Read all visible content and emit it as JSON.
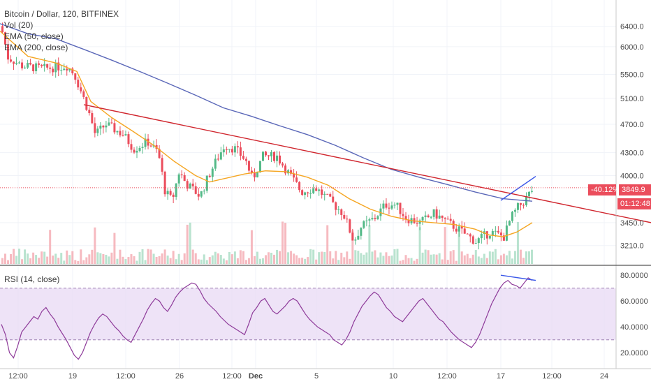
{
  "header": {
    "symbol": "Bitcoin / Dollar, 120, BITFINEX",
    "indicators": [
      "Vol (20)",
      "EMA (50, close)",
      "EMA (200, close)"
    ]
  },
  "rsi_panel": {
    "label": "RSI (14, close)"
  },
  "price_tags": {
    "change": "-40.12%",
    "price": "3849.9",
    "countdown": "01:12:48"
  },
  "colors": {
    "up": "#53b987",
    "down": "#eb4d5c",
    "ema50": "#f5a623",
    "ema200": "#5a67b8",
    "trendline": "#d0262e",
    "rsi_line": "#8e3b9a",
    "rsi_band": "#eadcf5",
    "channel": "#3a57e8"
  },
  "chart_data": [
    {
      "type": "candlestick",
      "title": "Bitcoin / Dollar, 120, BITFINEX",
      "x_ticks": [
        "12:00",
        "19",
        "12:00",
        "26",
        "12:00",
        "Dec",
        "5",
        "10",
        "12:00",
        "17",
        "12:00",
        "24"
      ],
      "y_ticks": [
        "6400.0",
        "6000.0",
        "5500.0",
        "5100.0",
        "4700.0",
        "4300.0",
        "4000.0",
        "3450.0",
        "3210.0"
      ],
      "y_scale": "log",
      "ylim": [
        3050,
        6650
      ],
      "last_price": 3849.9,
      "series": [
        {
          "name": "EMA (50, close)",
          "points": [
            [
              0,
              6300
            ],
            [
              40,
              5820
            ],
            [
              80,
              5700
            ],
            [
              110,
              5550
            ],
            [
              130,
              5050
            ],
            [
              160,
              4800
            ],
            [
              190,
              4600
            ],
            [
              220,
              4400
            ],
            [
              250,
              4180
            ],
            [
              280,
              4000
            ],
            [
              300,
              3920
            ],
            [
              320,
              3960
            ],
            [
              350,
              4020
            ],
            [
              380,
              4060
            ],
            [
              410,
              4050
            ],
            [
              440,
              3980
            ],
            [
              470,
              3880
            ],
            [
              500,
              3720
            ],
            [
              530,
              3600
            ],
            [
              560,
              3520
            ],
            [
              590,
              3470
            ],
            [
              620,
              3450
            ],
            [
              650,
              3430
            ],
            [
              680,
              3380
            ],
            [
              700,
              3320
            ],
            [
              720,
              3300
            ],
            [
              740,
              3350
            ],
            [
              762,
              3450
            ]
          ]
        },
        {
          "name": "EMA (200, close)",
          "points": [
            [
              0,
              6450
            ],
            [
              40,
              6250
            ],
            [
              80,
              6150
            ],
            [
              120,
              5950
            ],
            [
              160,
              5750
            ],
            [
              200,
              5550
            ],
            [
              240,
              5350
            ],
            [
              280,
              5150
            ],
            [
              320,
              4950
            ],
            [
              360,
              4820
            ],
            [
              400,
              4680
            ],
            [
              440,
              4550
            ],
            [
              480,
              4400
            ],
            [
              520,
              4230
            ],
            [
              560,
              4080
            ],
            [
              600,
              3980
            ],
            [
              640,
              3890
            ],
            [
              680,
              3800
            ],
            [
              720,
              3720
            ],
            [
              762,
              3690
            ]
          ]
        }
      ],
      "trendline": [
        [
          120,
          5000
        ],
        [
          932,
          3450
        ]
      ],
      "rising_line": [
        [
          717,
          3700
        ],
        [
          767,
          3990
        ]
      ]
    },
    {
      "type": "line",
      "title": "RSI (14, close)",
      "y_ticks": [
        "80.0000",
        "60.0000",
        "40.0000",
        "20.0000"
      ],
      "ylim": [
        12,
        85
      ],
      "bands": [
        30,
        70
      ],
      "divergence_line": [
        [
          717,
          80
        ],
        [
          767,
          76
        ]
      ],
      "rsi_values": [
        42,
        34,
        20,
        16,
        25,
        36,
        40,
        44,
        48,
        46,
        52,
        55,
        50,
        46,
        40,
        35,
        30,
        24,
        18,
        15,
        20,
        28,
        36,
        42,
        47,
        50,
        48,
        44,
        40,
        37,
        33,
        30,
        28,
        34,
        40,
        46,
        53,
        58,
        62,
        60,
        55,
        52,
        57,
        63,
        67,
        70,
        72,
        74,
        73,
        68,
        62,
        58,
        55,
        52,
        48,
        45,
        42,
        40,
        38,
        36,
        34,
        42,
        51,
        55,
        60,
        62,
        57,
        52,
        50,
        53,
        56,
        60,
        62,
        60,
        55,
        50,
        46,
        43,
        40,
        38,
        36,
        34,
        30,
        28,
        26,
        30,
        36,
        44,
        50,
        56,
        60,
        64,
        67,
        65,
        60,
        55,
        52,
        48,
        46,
        44,
        48,
        52,
        56,
        60,
        62,
        58,
        54,
        50,
        46,
        44,
        40,
        36,
        33,
        30,
        28,
        26,
        24,
        28,
        34,
        42,
        50,
        58,
        64,
        70,
        74,
        76,
        73,
        72,
        70,
        74,
        78,
        76
      ]
    }
  ]
}
